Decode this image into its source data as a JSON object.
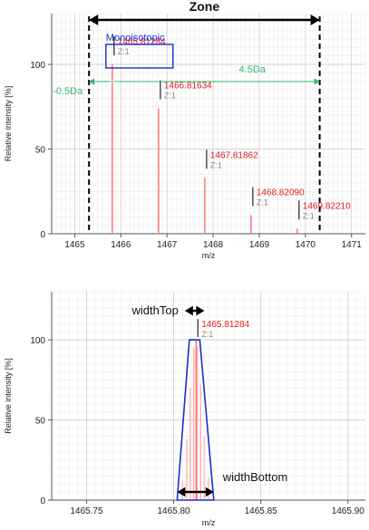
{
  "chart_data": [
    {
      "type": "bar",
      "xlabel": "m/z",
      "ylabel": "Relative intensity [%]",
      "xlim": [
        1464.5,
        1471.3
      ],
      "ylim": [
        0,
        130
      ],
      "xticks": [
        "1465",
        "1466",
        "1467",
        "1468",
        "1469",
        "1470",
        "1471"
      ],
      "yticks": [
        "0",
        "50",
        "100"
      ],
      "grid": true,
      "peaks": [
        {
          "mz": 1465.81284,
          "intensity": 100,
          "label": "1465.81284",
          "charge": "Z:1"
        },
        {
          "mz": 1466.81634,
          "intensity": 74,
          "label": "1466.81634",
          "charge": "Z:1"
        },
        {
          "mz": 1467.81862,
          "intensity": 33,
          "label": "1467.81862",
          "charge": "Z:1"
        },
        {
          "mz": 1468.8209,
          "intensity": 11,
          "label": "1468.82090",
          "charge": "Z:1"
        },
        {
          "mz": 1469.8221,
          "intensity": 3,
          "label": "1469.82210",
          "charge": "Z:1"
        }
      ],
      "annotations": {
        "zone": "Zone",
        "monoisotopic": "Monoisotopic",
        "minus_offset": "-0.5Da",
        "plus_offset": "4.5Da",
        "zone_range": [
          1465.31,
          1470.31
        ],
        "monoisotopic_mz": 1465.81284
      }
    },
    {
      "type": "bar",
      "xlabel": "m/z",
      "ylabel": "Relative intensity [%]",
      "xlim": [
        1465.73,
        1465.91
      ],
      "ylim": [
        0,
        130
      ],
      "xticks": [
        "1465.75",
        "1465.80",
        "1465.85",
        "1465.90"
      ],
      "yticks": [
        "0",
        "50",
        "100"
      ],
      "grid": true,
      "peak": {
        "mz": 1465.81284,
        "intensity": 100,
        "label": "1465.81284",
        "charge": "Z:1"
      },
      "profile_sticks": [
        {
          "mz": 1465.805,
          "intensity": 12
        },
        {
          "mz": 1465.8075,
          "intensity": 38
        },
        {
          "mz": 1465.8095,
          "intensity": 70
        },
        {
          "mz": 1465.8115,
          "intensity": 95
        },
        {
          "mz": 1465.8135,
          "intensity": 96
        },
        {
          "mz": 1465.8155,
          "intensity": 72
        },
        {
          "mz": 1465.8175,
          "intensity": 40
        },
        {
          "mz": 1465.82,
          "intensity": 14
        }
      ],
      "annotations": {
        "width_top": "widthTop",
        "width_bottom": "widthBottom",
        "trapezoid_top": [
          1465.809,
          1465.815
        ],
        "trapezoid_bottom": [
          1465.802,
          1465.823
        ]
      }
    }
  ]
}
